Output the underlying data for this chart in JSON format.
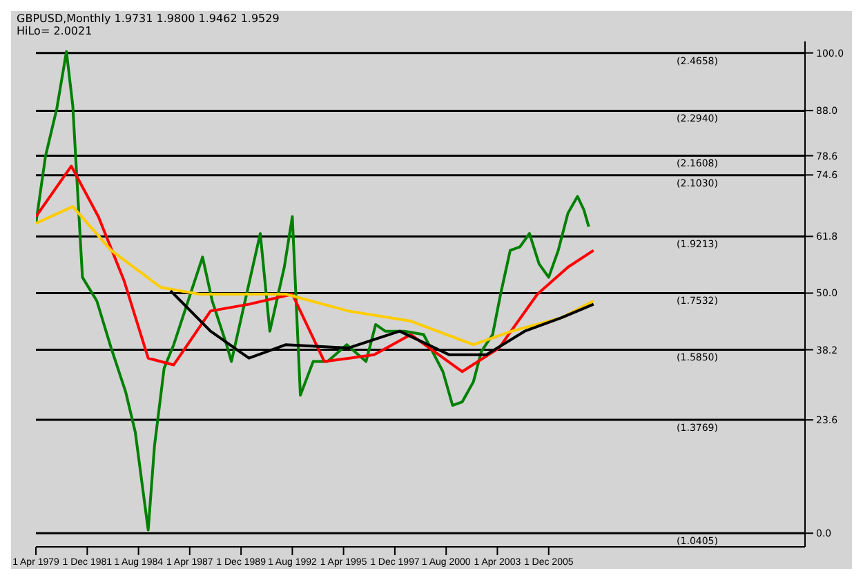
{
  "chart_data": {
    "type": "line",
    "title": "GBPUSD,Monthly  1.9731 1.9800 1.9462 1.9529",
    "subtitle": "HiLo= 2.0021",
    "xlim": [
      "1979-04-01",
      "2019-04-01"
    ],
    "xticks": [
      {
        "value": "1979-04-01",
        "label": "1 Apr 1979"
      },
      {
        "value": "1981-12-01",
        "label": "1 Dec 1981"
      },
      {
        "value": "1984-08-01",
        "label": "1 Aug 1984"
      },
      {
        "value": "1987-04-01",
        "label": "1 Apr 1987"
      },
      {
        "value": "1989-12-01",
        "label": "1 Dec 1989"
      },
      {
        "value": "1992-08-01",
        "label": "1 Aug 1992"
      },
      {
        "value": "1995-04-01",
        "label": "1 Apr 1995"
      },
      {
        "value": "1997-12-01",
        "label": "1 Dec 1997"
      },
      {
        "value": "2000-08-01",
        "label": "1 Aug 2000"
      },
      {
        "value": "2003-04-01",
        "label": "1 Apr 2003"
      },
      {
        "value": "2005-12-01",
        "label": "1 Dec 2005"
      }
    ],
    "ylim": [
      1.0,
      2.5
    ],
    "y2lim": [
      -2.84,
      102.4
    ],
    "y2ticks": [
      {
        "value": 100,
        "label": "100.0"
      },
      {
        "value": 88,
        "label": "88.0"
      },
      {
        "value": 78.6,
        "label": "78.6"
      },
      {
        "value": 74.6,
        "label": "74.6"
      },
      {
        "value": 61.8,
        "label": "61.8"
      },
      {
        "value": 50,
        "label": "50.0"
      },
      {
        "value": 38.2,
        "label": "38.2"
      },
      {
        "value": 23.6,
        "label": "23.6"
      },
      {
        "value": 0,
        "label": "0.0"
      }
    ],
    "ref_lines": [
      {
        "axis": "y",
        "value": 2.4658,
        "label": "(2.4658)",
        "color": "#000000"
      },
      {
        "axis": "y",
        "value": 2.294,
        "label": "(2.2940)",
        "color": "#000000"
      },
      {
        "axis": "y",
        "value": 2.1608,
        "label": "(2.1608)",
        "color": "#000000"
      },
      {
        "axis": "y",
        "value": 2.103,
        "label": "(2.1030)",
        "color": "#000000"
      },
      {
        "axis": "y",
        "value": 1.9213,
        "label": "(1.9213)",
        "color": "#000000"
      },
      {
        "axis": "y",
        "value": 1.7532,
        "label": "(1.7532)",
        "color": "#000000"
      },
      {
        "axis": "y",
        "value": 1.585,
        "label": "(1.5850)",
        "color": "#000000"
      },
      {
        "axis": "y",
        "value": 1.3769,
        "label": "(1.3769)",
        "color": "#000000"
      },
      {
        "axis": "y",
        "value": 1.0405,
        "label": "(1.0405)",
        "color": "#000000"
      }
    ],
    "marker": "none",
    "line_style": "solid",
    "series": [
      {
        "color": "#008000",
        "x": [
          "1979-04",
          "1979-10",
          "1980-05",
          "1980-11",
          "1981-03",
          "1981-09",
          "1982-06",
          "1983-03",
          "1983-12",
          "1984-06",
          "1985-02",
          "1985-06",
          "1985-12",
          "1986-06",
          "1987-03",
          "1987-12",
          "1988-06",
          "1989-03",
          "1989-06",
          "1990-12",
          "1991-06",
          "1992-03",
          "1992-08",
          "1993-01",
          "1993-09",
          "1994-06",
          "1995-06",
          "1996-06",
          "1996-12",
          "1997-06",
          "1998-06",
          "1999-06",
          "2000-06",
          "2000-12",
          "2001-06",
          "2002-01",
          "2002-06",
          "2003-01",
          "2003-06",
          "2003-12",
          "2004-06",
          "2004-12",
          "2005-06",
          "2005-12",
          "2006-06",
          "2006-12",
          "2007-06",
          "2007-10",
          "2008-01"
        ],
        "values": [
          1.96,
          2.16,
          2.3,
          2.47,
          2.31,
          1.8,
          1.73,
          1.59,
          1.46,
          1.34,
          1.05,
          1.3,
          1.53,
          1.6,
          1.73,
          1.86,
          1.73,
          1.6,
          1.55,
          1.93,
          1.64,
          1.83,
          1.98,
          1.45,
          1.55,
          1.55,
          1.6,
          1.55,
          1.66,
          1.64,
          1.64,
          1.63,
          1.52,
          1.42,
          1.43,
          1.49,
          1.58,
          1.63,
          1.75,
          1.88,
          1.89,
          1.93,
          1.84,
          1.8,
          1.88,
          1.99,
          2.04,
          2.0,
          1.95
        ]
      },
      {
        "color": "#ff0000",
        "x": [
          "1979-04",
          "1981-02",
          "1982-07",
          "1983-11",
          "1985-02",
          "1986-06",
          "1988-05",
          "1990-05",
          "1992-08",
          "1994-04",
          "1996-11",
          "1998-10",
          "2001-06",
          "2003-05",
          "2005-05",
          "2006-12",
          "2008-04"
        ],
        "values": [
          1.98,
          2.13,
          1.98,
          1.79,
          1.56,
          1.54,
          1.7,
          1.72,
          1.75,
          1.55,
          1.57,
          1.63,
          1.52,
          1.59,
          1.75,
          1.83,
          1.88
        ]
      },
      {
        "color": "#ffcc00",
        "x": [
          "1979-04",
          "1981-03",
          "1983-03",
          "1985-10",
          "1987-10",
          "1989-09",
          "1992-04",
          "1995-07",
          "1998-10",
          "2002-01",
          "2004-01",
          "2006-08",
          "2008-04"
        ],
        "values": [
          1.96,
          2.01,
          1.88,
          1.77,
          1.75,
          1.75,
          1.75,
          1.7,
          1.67,
          1.6,
          1.64,
          1.68,
          1.73
        ]
      },
      {
        "color": "#000000",
        "x": [
          "1986-04",
          "1988-05",
          "1990-05",
          "1992-04",
          "1995-07",
          "1998-03",
          "2000-10",
          "2002-09",
          "2004-09",
          "2006-08",
          "2008-04"
        ],
        "values": [
          1.76,
          1.64,
          1.56,
          1.6,
          1.59,
          1.64,
          1.57,
          1.57,
          1.64,
          1.68,
          1.72
        ]
      }
    ]
  }
}
